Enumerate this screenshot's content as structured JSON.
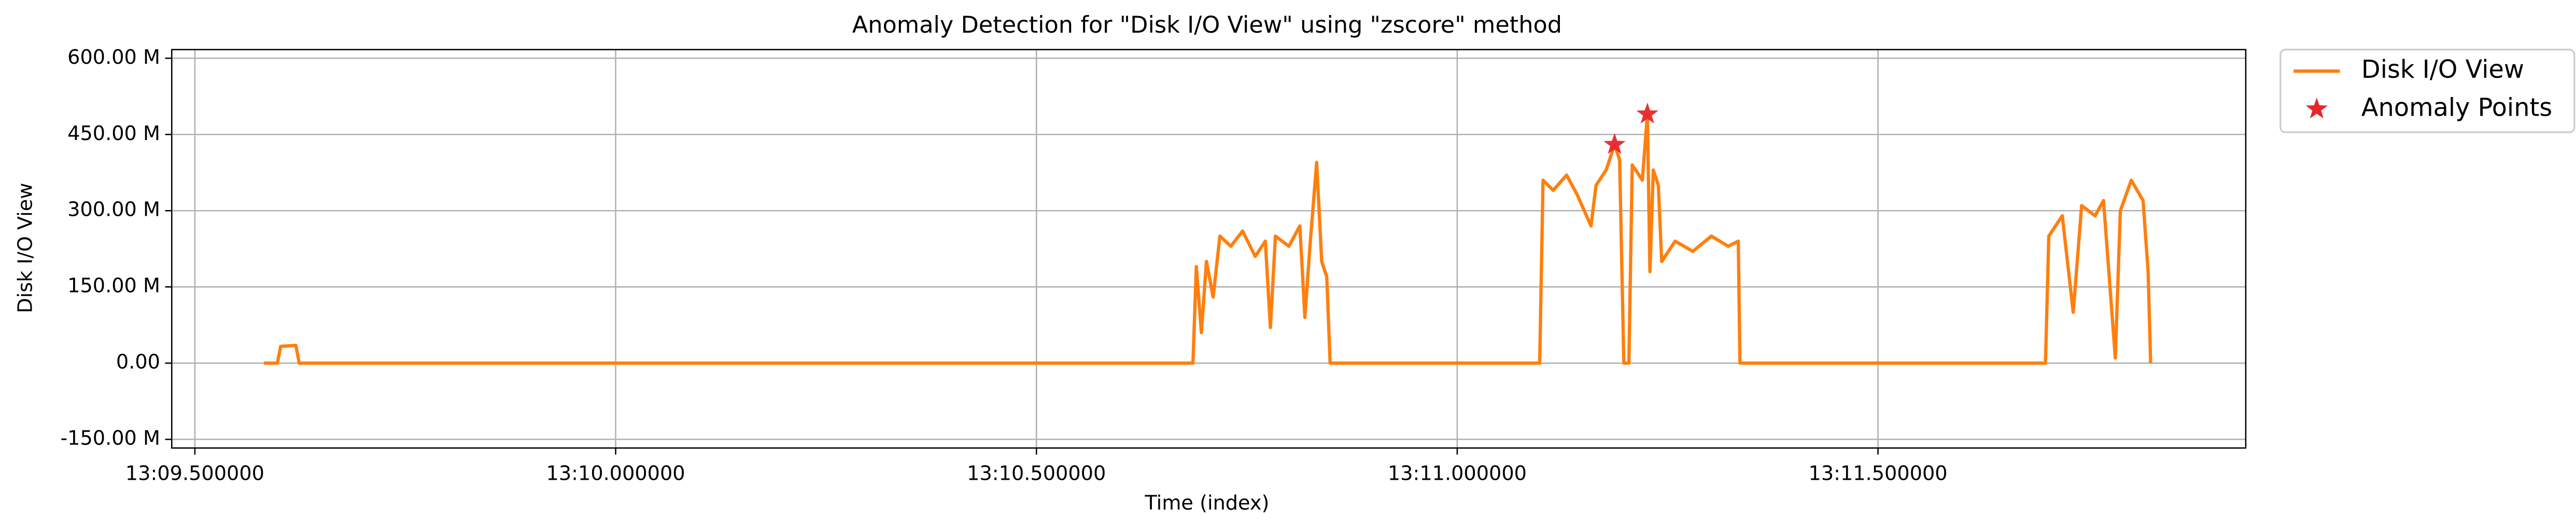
{
  "chart_data": {
    "type": "line",
    "title": "Anomaly Detection for \"Disk I/O View\" using \"zscore\" method",
    "xlabel": "Time (index)",
    "ylabel": "Disk I/O View",
    "xlim": [
      789.4725,
      791.937
    ],
    "ylim": [
      -167,
      617
    ],
    "xticks": [
      {
        "value": 789.5,
        "label": "13:09.500000"
      },
      {
        "value": 790.0,
        "label": "13:10.000000"
      },
      {
        "value": 790.5,
        "label": "13:10.500000"
      },
      {
        "value": 791.0,
        "label": "13:11.000000"
      },
      {
        "value": 791.5,
        "label": "13:11.500000"
      }
    ],
    "yticks": [
      {
        "value": -150,
        "label": "-150.00 M"
      },
      {
        "value": 0,
        "label": "0.00"
      },
      {
        "value": 150,
        "label": "150.00 M"
      },
      {
        "value": 300,
        "label": "300.00 M"
      },
      {
        "value": 450,
        "label": "450.00 M"
      },
      {
        "value": 600,
        "label": "600.00 M"
      }
    ],
    "grid": true,
    "legend": "upper left outside",
    "series": [
      {
        "name": "Disk I/O View",
        "color": "#ff7f0e",
        "marker": "line",
        "x": [
          789.582,
          789.598,
          789.602,
          789.62,
          789.624,
          790.686,
          790.69,
          790.696,
          790.702,
          790.71,
          790.718,
          790.731,
          790.745,
          790.76,
          790.772,
          790.778,
          790.784,
          790.8,
          790.813,
          790.819,
          790.825,
          790.833,
          790.839,
          790.845,
          790.849,
          791.098,
          791.102,
          791.114,
          791.13,
          791.143,
          791.159,
          791.165,
          791.177,
          791.187,
          791.193,
          791.198,
          791.204,
          791.208,
          791.22,
          791.226,
          791.229,
          791.233,
          791.239,
          791.243,
          791.259,
          791.28,
          791.302,
          791.322,
          791.334,
          791.336,
          791.699,
          791.703,
          791.719,
          791.732,
          791.742,
          791.758,
          791.768,
          791.782,
          791.788,
          791.801,
          791.815,
          791.821,
          791.824
        ],
        "values": [
          0,
          0,
          33,
          35,
          0,
          0,
          190,
          60,
          200,
          130,
          250,
          230,
          260,
          210,
          240,
          70,
          250,
          230,
          270,
          90,
          230,
          395,
          200,
          170,
          0,
          0,
          360,
          340,
          370,
          330,
          270,
          350,
          380,
          430,
          400,
          0,
          0,
          390,
          360,
          490,
          180,
          380,
          350,
          200,
          240,
          220,
          250,
          230,
          240,
          0,
          0,
          250,
          290,
          100,
          310,
          290,
          320,
          10,
          300,
          360,
          320,
          180,
          0
        ]
      },
      {
        "name": "Anomaly Points",
        "color": "#e8262a",
        "marker": "star",
        "x": [
          791.187,
          791.226
        ],
        "values": [
          430,
          490
        ]
      }
    ]
  }
}
